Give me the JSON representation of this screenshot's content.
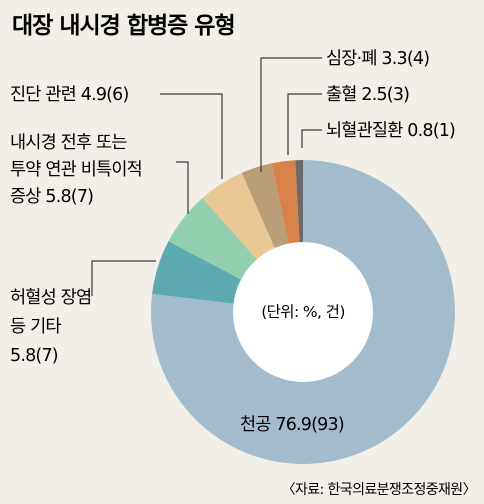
{
  "chart_data": {
    "type": "pie",
    "title": "대장 내시경 합병증 유형",
    "unit_note": "(단위: %, 건)",
    "source": "〈자료: 한국의료분쟁조정중재원〉",
    "slices": [
      {
        "label": "천공",
        "percent": 76.9,
        "count": 93,
        "color": "#a3bccd"
      },
      {
        "label": "허혈성 장염 등 기타",
        "percent": 5.8,
        "count": 7,
        "color": "#5eaab2"
      },
      {
        "label": "내시경 전후 또는 투약 연관 비특이적 증상",
        "percent": 5.8,
        "count": 7,
        "color": "#92cfae"
      },
      {
        "label": "진단 관련",
        "percent": 4.9,
        "count": 6,
        "color": "#e9c895"
      },
      {
        "label": "심장·폐",
        "percent": 3.3,
        "count": 4,
        "color": "#b99e78"
      },
      {
        "label": "출혈",
        "percent": 2.5,
        "count": 3,
        "color": "#d9834b"
      },
      {
        "label": "뇌혈관질환",
        "percent": 0.8,
        "count": 1,
        "color": "#6a6a6a"
      }
    ],
    "labels": [
      {
        "lines": [
          "심장·폐 3.3(4)"
        ]
      },
      {
        "lines": [
          "출혈 2.5(3)"
        ]
      },
      {
        "lines": [
          "뇌혈관질환 0.8(1)"
        ]
      },
      {
        "lines": [
          "진단 관련 4.9(6)"
        ]
      },
      {
        "lines": [
          "내시경 전후 또는",
          "투약 연관 비특이적",
          "증상 5.8(7)"
        ]
      },
      {
        "lines": [
          "허혈성 장염",
          "등 기타",
          "5.8(7)"
        ]
      },
      {
        "lines": [
          "천공 76.9(93)"
        ]
      }
    ]
  }
}
